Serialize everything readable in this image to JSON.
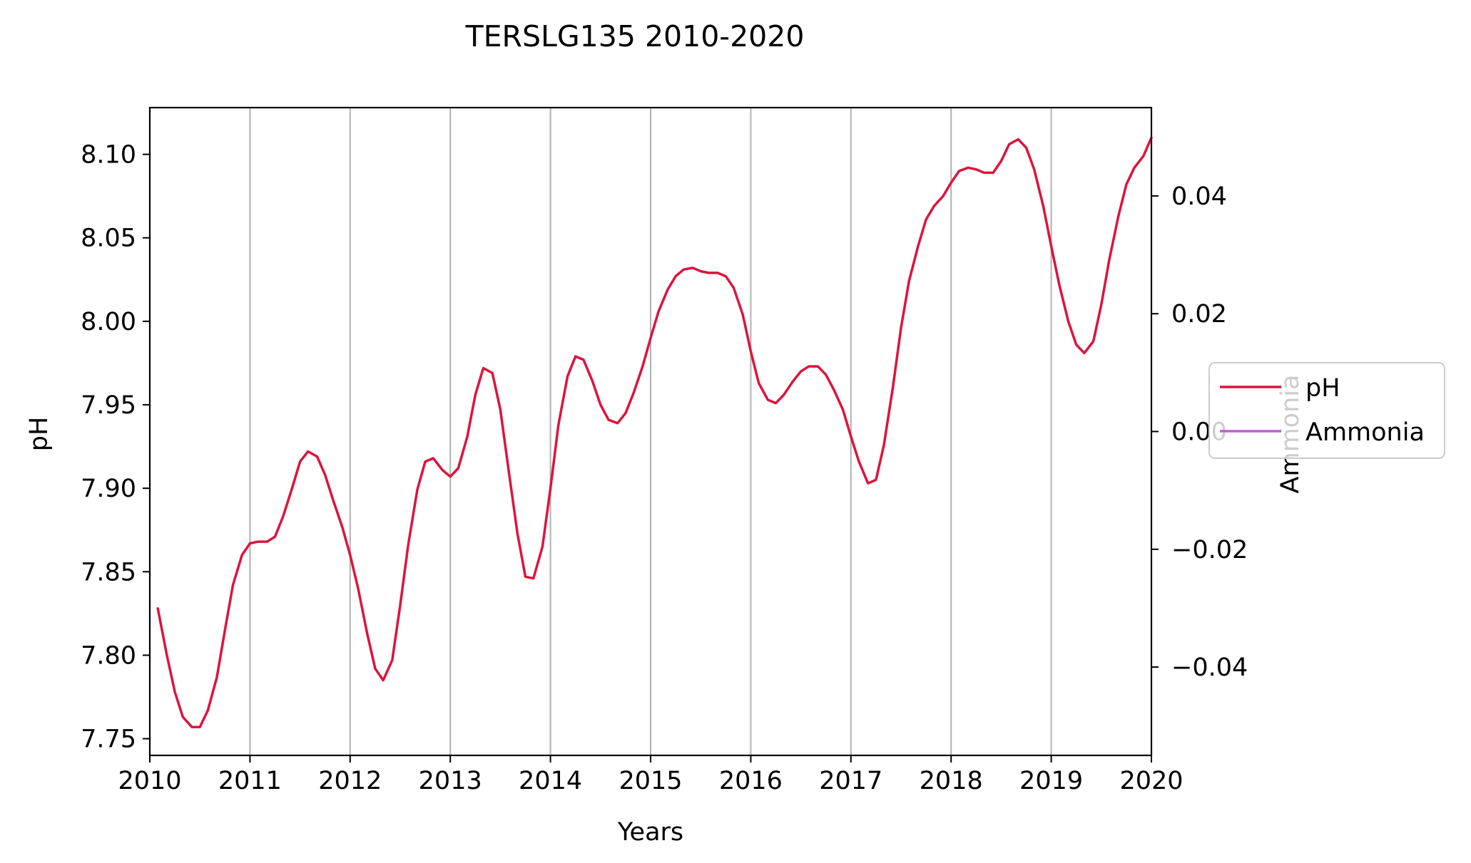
{
  "chart_data": {
    "type": "line",
    "title": "TERSLG135 2010-2020",
    "xlabel": "Years",
    "ylabel": "pH",
    "y2label": "Ammonia",
    "xlim": [
      2010.0,
      2020.0
    ],
    "ylim": [
      7.74,
      8.128
    ],
    "y2lim": [
      -0.055,
      0.055
    ],
    "grid": "vertical-x-major",
    "legend_position": "center-right",
    "x_ticks": [
      "2010",
      "2011",
      "2012",
      "2013",
      "2014",
      "2015",
      "2016",
      "2017",
      "2018",
      "2019",
      "2020"
    ],
    "y_ticks": [
      "7.75",
      "7.80",
      "7.85",
      "7.90",
      "7.95",
      "8.00",
      "8.05",
      "8.10"
    ],
    "y2_ticks": [
      "−0.04",
      "−0.02",
      "0.00",
      "0.02",
      "0.04"
    ],
    "series": [
      {
        "name": "pH",
        "color": "#dc143c",
        "x": [
          2010.08,
          2010.17,
          2010.25,
          2010.33,
          2010.42,
          2010.5,
          2010.58,
          2010.67,
          2010.75,
          2010.83,
          2010.92,
          2011.0,
          2011.08,
          2011.17,
          2011.25,
          2011.33,
          2011.42,
          2011.5,
          2011.58,
          2011.67,
          2011.75,
          2011.83,
          2011.92,
          2012.0,
          2012.08,
          2012.17,
          2012.25,
          2012.33,
          2012.42,
          2012.5,
          2012.58,
          2012.67,
          2012.75,
          2012.83,
          2012.92,
          2013.0,
          2013.08,
          2013.17,
          2013.25,
          2013.33,
          2013.42,
          2013.5,
          2013.58,
          2013.67,
          2013.75,
          2013.83,
          2013.92,
          2014.0,
          2014.08,
          2014.17,
          2014.25,
          2014.33,
          2014.42,
          2014.5,
          2014.58,
          2014.67,
          2014.75,
          2014.83,
          2014.92,
          2015.0,
          2015.08,
          2015.17,
          2015.25,
          2015.33,
          2015.42,
          2015.5,
          2015.58,
          2015.67,
          2015.75,
          2015.83,
          2015.92,
          2016.0,
          2016.08,
          2016.17,
          2016.25,
          2016.33,
          2016.42,
          2016.5,
          2016.58,
          2016.67,
          2016.75,
          2016.83,
          2016.92,
          2017.0,
          2017.08,
          2017.17,
          2017.25,
          2017.33,
          2017.42,
          2017.5,
          2017.58,
          2017.67,
          2017.75,
          2017.83,
          2017.92,
          2018.0,
          2018.08,
          2018.17,
          2018.25,
          2018.33,
          2018.42,
          2018.5,
          2018.58,
          2018.67,
          2018.75,
          2018.83,
          2018.92,
          2019.0,
          2019.08,
          2019.17,
          2019.25,
          2019.33,
          2019.42,
          2019.5,
          2019.58,
          2019.67,
          2019.75,
          2019.83,
          2019.92,
          2020.0
        ],
        "values": [
          7.828,
          7.8,
          7.778,
          7.763,
          7.757,
          7.757,
          7.767,
          7.787,
          7.815,
          7.842,
          7.86,
          7.867,
          7.868,
          7.868,
          7.871,
          7.883,
          7.9,
          7.916,
          7.922,
          7.919,
          7.908,
          7.893,
          7.877,
          7.86,
          7.84,
          7.813,
          7.792,
          7.785,
          7.797,
          7.83,
          7.866,
          7.899,
          7.916,
          7.918,
          7.911,
          7.907,
          7.912,
          7.931,
          7.956,
          7.972,
          7.969,
          7.947,
          7.912,
          7.873,
          7.847,
          7.846,
          7.865,
          7.9,
          7.938,
          7.967,
          7.979,
          7.977,
          7.964,
          7.95,
          7.941,
          7.939,
          7.945,
          7.957,
          7.973,
          7.99,
          8.006,
          8.019,
          8.027,
          8.031,
          8.032,
          8.03,
          8.029,
          8.029,
          8.027,
          8.02,
          8.004,
          7.982,
          7.963,
          7.953,
          7.951,
          7.956,
          7.964,
          7.97,
          7.973,
          7.973,
          7.968,
          7.959,
          7.947,
          7.931,
          7.916,
          7.903,
          7.905,
          7.926,
          7.961,
          7.996,
          8.024,
          8.045,
          8.061,
          8.069,
          8.075,
          8.083,
          8.09,
          8.092,
          8.091,
          8.089,
          8.089,
          8.096,
          8.106,
          8.109,
          8.104,
          8.091,
          8.069,
          8.045,
          8.022,
          8.0,
          7.986,
          7.981,
          7.988,
          8.01,
          8.037,
          8.063,
          8.082,
          8.092,
          8.099,
          8.11
        ]
      },
      {
        "name": "Ammonia",
        "color": "#bf5fd0",
        "x": [],
        "values": []
      }
    ]
  }
}
